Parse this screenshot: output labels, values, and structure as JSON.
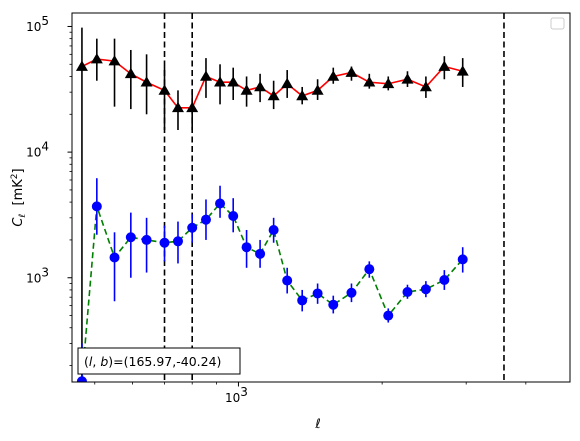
{
  "chart_data": {
    "type": "scatter",
    "xscale": "log",
    "yscale": "log",
    "xlim": [
      448,
      4950
    ],
    "ylim": [
      148,
      128000
    ],
    "xlabel_tex": "ℓ",
    "ylabel_tex": "C_ℓ  [mK²]",
    "xtick_major": [
      {
        "value": 1000,
        "base": "10",
        "exp": "3"
      }
    ],
    "ytick_major": [
      {
        "value": 1000,
        "base": "10",
        "exp": "3"
      },
      {
        "value": 10000,
        "base": "10",
        "exp": "4"
      },
      {
        "value": 100000,
        "base": "10",
        "exp": "5"
      }
    ],
    "vlines": [
      700,
      800,
      3600
    ],
    "vline_style": "dashed",
    "vline_color": "#000000",
    "legend": "top-right",
    "annotation": {
      "l": "165.97",
      "b": "-40.24"
    },
    "series": [
      {
        "id": "red",
        "marker": "triangle",
        "marker_color": "#000000",
        "line_color": "#ff0000",
        "line_style": "solid",
        "errorbar_color": "#000000",
        "points": [
          {
            "x": 470,
            "y": 48000,
            "lo": 150,
            "hi": 98000
          },
          {
            "x": 505,
            "y": 55000,
            "lo": 37000,
            "hi": 80000
          },
          {
            "x": 550,
            "y": 53000,
            "lo": 23000,
            "hi": 80000
          },
          {
            "x": 595,
            "y": 42000,
            "lo": 22000,
            "hi": 65000
          },
          {
            "x": 642,
            "y": 36000,
            "lo": 20000,
            "hi": 60000
          },
          {
            "x": 700,
            "y": 31000,
            "lo": 15000,
            "hi": 48000
          },
          {
            "x": 747,
            "y": 22500,
            "lo": 15000,
            "hi": 31000
          },
          {
            "x": 800,
            "y": 22500,
            "lo": 15000,
            "hi": 31000
          },
          {
            "x": 855,
            "y": 40000,
            "lo": 27000,
            "hi": 56000
          },
          {
            "x": 915,
            "y": 36000,
            "lo": 24000,
            "hi": 50000
          },
          {
            "x": 975,
            "y": 36000,
            "lo": 26000,
            "hi": 47000
          },
          {
            "x": 1040,
            "y": 31000,
            "lo": 23000,
            "hi": 40000
          },
          {
            "x": 1110,
            "y": 33000,
            "lo": 25000,
            "hi": 42000
          },
          {
            "x": 1185,
            "y": 28000,
            "lo": 22000,
            "hi": 37000
          },
          {
            "x": 1265,
            "y": 35000,
            "lo": 27000,
            "hi": 45000
          },
          {
            "x": 1360,
            "y": 28000,
            "lo": 24000,
            "hi": 33000
          },
          {
            "x": 1465,
            "y": 31000,
            "lo": 26000,
            "hi": 38000
          },
          {
            "x": 1580,
            "y": 40000,
            "lo": 35000,
            "hi": 47000
          },
          {
            "x": 1725,
            "y": 43000,
            "lo": 37000,
            "hi": 48000
          },
          {
            "x": 1880,
            "y": 36000,
            "lo": 32000,
            "hi": 42000
          },
          {
            "x": 2060,
            "y": 35000,
            "lo": 31000,
            "hi": 40000
          },
          {
            "x": 2260,
            "y": 38000,
            "lo": 33000,
            "hi": 44000
          },
          {
            "x": 2470,
            "y": 33000,
            "lo": 27000,
            "hi": 40000
          },
          {
            "x": 2700,
            "y": 48000,
            "lo": 38000,
            "hi": 58000
          },
          {
            "x": 2950,
            "y": 44000,
            "lo": 33000,
            "hi": 56000
          }
        ]
      },
      {
        "id": "blue",
        "marker": "circle",
        "marker_color": "#0000ff",
        "line_color": "#008000",
        "line_style": "dashed",
        "errorbar_color": "#0000ff",
        "points": [
          {
            "x": 470,
            "y": 150,
            "lo": 120,
            "hi": 300
          },
          {
            "x": 505,
            "y": 3700,
            "lo": 2200,
            "hi": 6200
          },
          {
            "x": 550,
            "y": 1450,
            "lo": 650,
            "hi": 2300
          },
          {
            "x": 595,
            "y": 2100,
            "lo": 1000,
            "hi": 3300
          },
          {
            "x": 642,
            "y": 2000,
            "lo": 1100,
            "hi": 3000
          },
          {
            "x": 700,
            "y": 1900,
            "lo": 1350,
            "hi": 2600
          },
          {
            "x": 747,
            "y": 1950,
            "lo": 1300,
            "hi": 2800
          },
          {
            "x": 800,
            "y": 2500,
            "lo": 1900,
            "hi": 3200
          },
          {
            "x": 855,
            "y": 2900,
            "lo": 2000,
            "hi": 4200
          },
          {
            "x": 915,
            "y": 3900,
            "lo": 3000,
            "hi": 5400
          },
          {
            "x": 975,
            "y": 3100,
            "lo": 2300,
            "hi": 4300
          },
          {
            "x": 1040,
            "y": 1750,
            "lo": 1200,
            "hi": 2400
          },
          {
            "x": 1110,
            "y": 1550,
            "lo": 1200,
            "hi": 2000
          },
          {
            "x": 1185,
            "y": 2400,
            "lo": 1900,
            "hi": 3000
          },
          {
            "x": 1265,
            "y": 950,
            "lo": 750,
            "hi": 1200
          },
          {
            "x": 1360,
            "y": 660,
            "lo": 540,
            "hi": 800
          },
          {
            "x": 1465,
            "y": 750,
            "lo": 620,
            "hi": 900
          },
          {
            "x": 1580,
            "y": 610,
            "lo": 520,
            "hi": 720
          },
          {
            "x": 1725,
            "y": 760,
            "lo": 640,
            "hi": 900
          },
          {
            "x": 1880,
            "y": 1170,
            "lo": 1000,
            "hi": 1350
          },
          {
            "x": 2060,
            "y": 500,
            "lo": 440,
            "hi": 570
          },
          {
            "x": 2260,
            "y": 770,
            "lo": 680,
            "hi": 880
          },
          {
            "x": 2470,
            "y": 810,
            "lo": 700,
            "hi": 940
          },
          {
            "x": 2700,
            "y": 960,
            "lo": 800,
            "hi": 1150
          },
          {
            "x": 2950,
            "y": 1400,
            "lo": 1100,
            "hi": 1750
          }
        ]
      }
    ]
  }
}
